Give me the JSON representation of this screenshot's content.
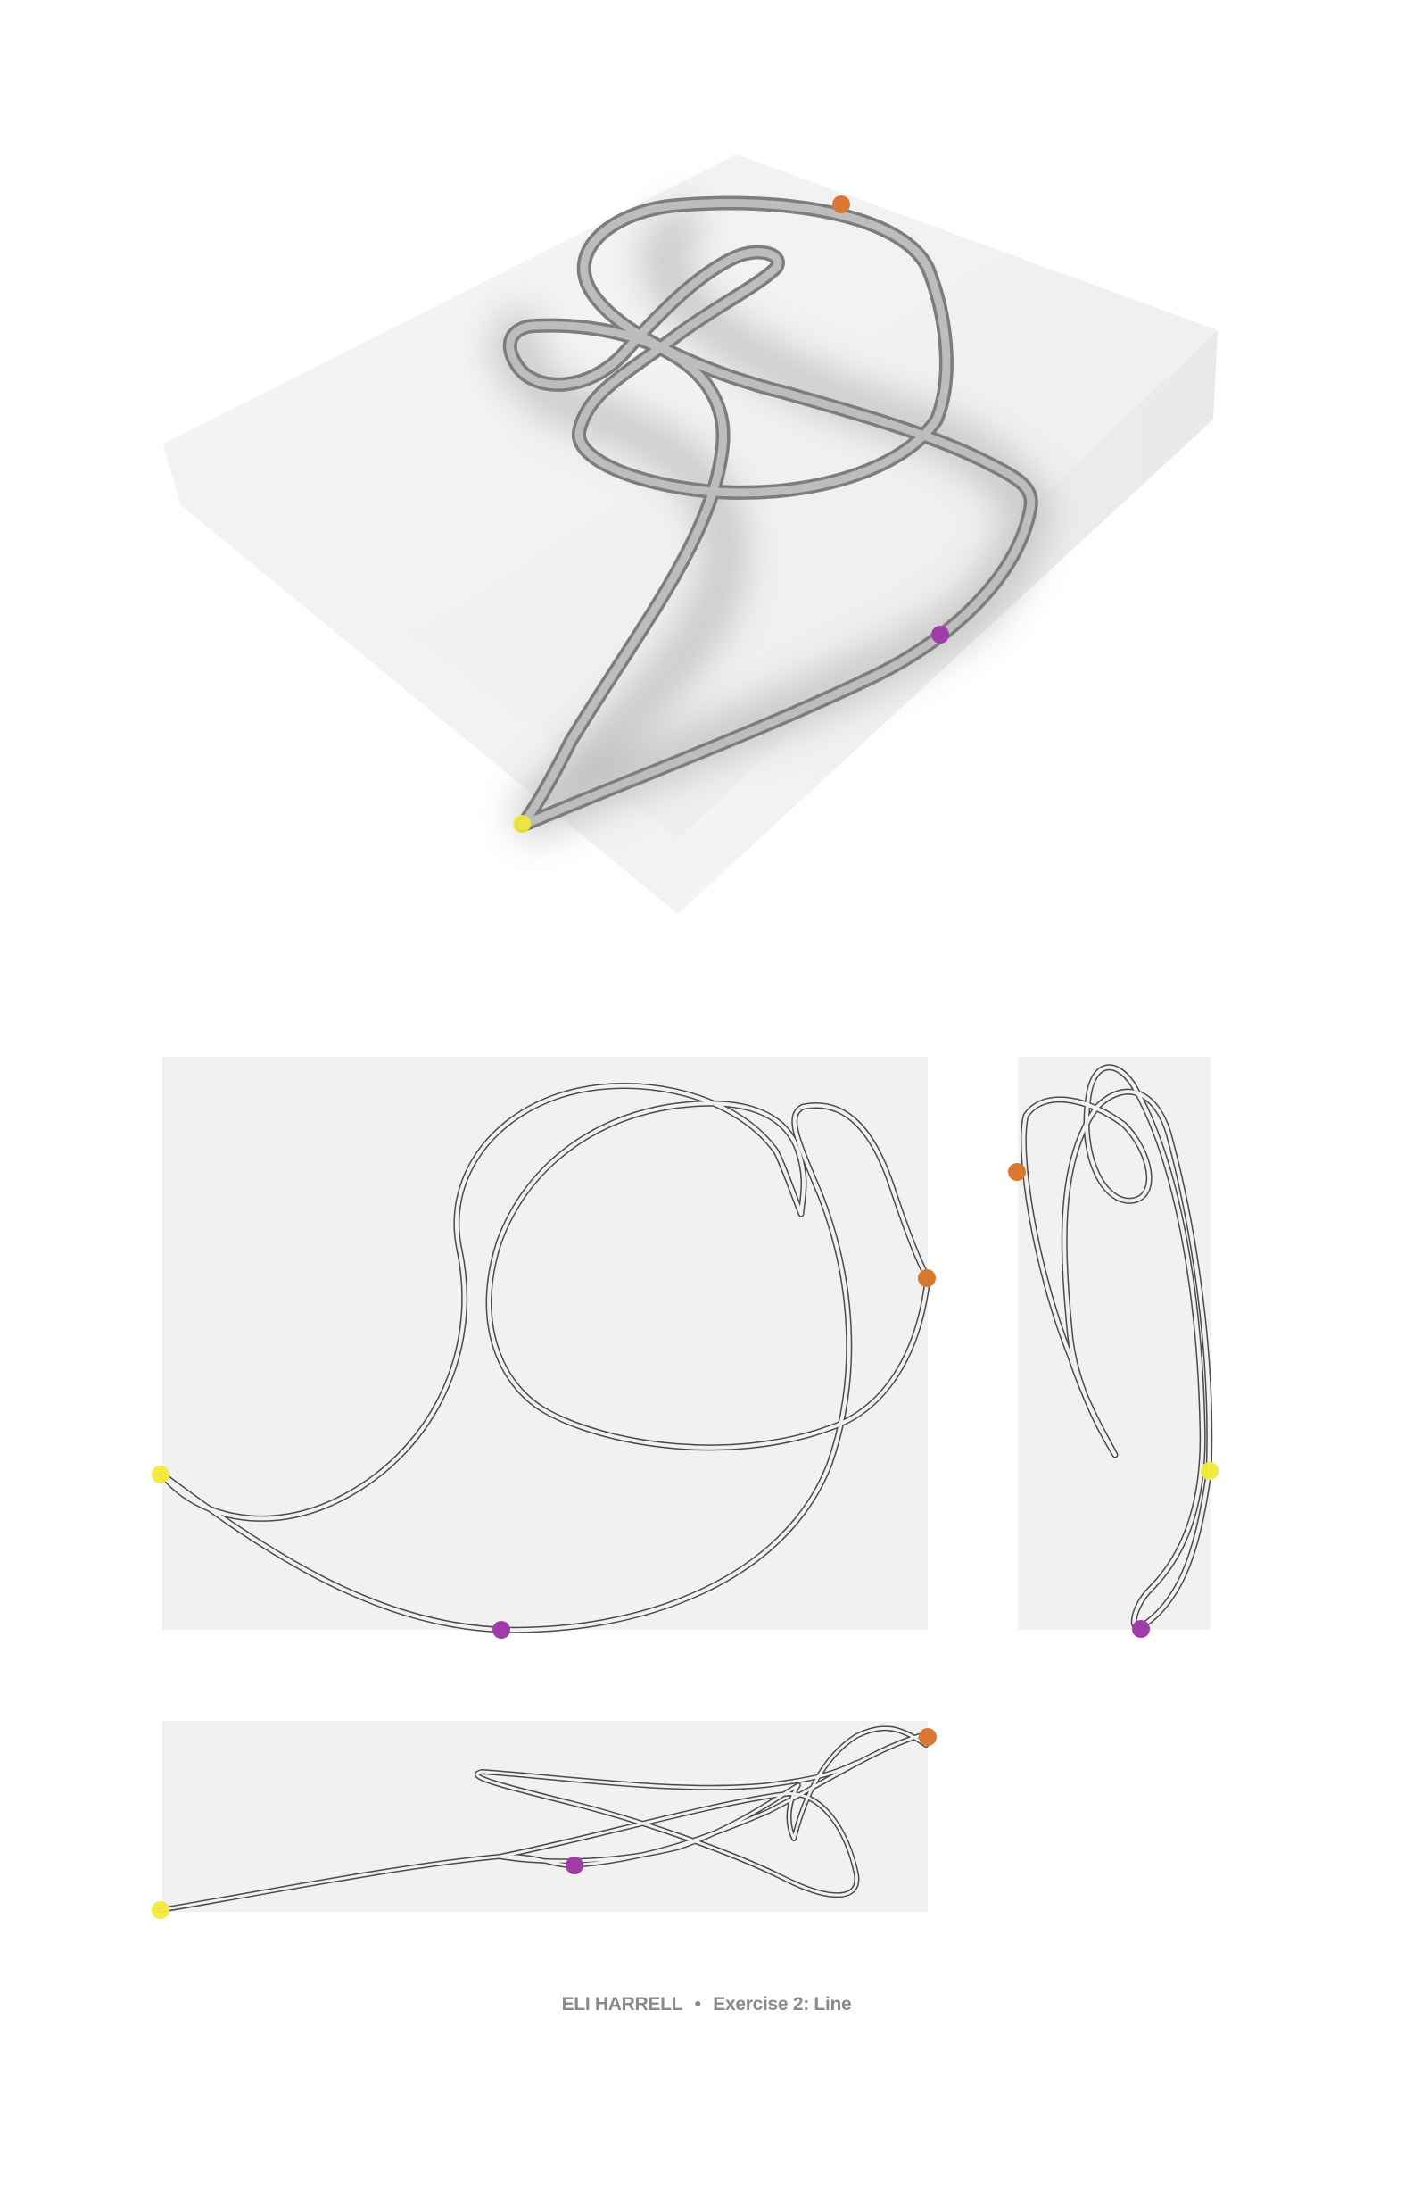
{
  "caption": {
    "author": "ELI HARRELL",
    "separator": "•",
    "title": "Exercise 2: Line"
  },
  "colors": {
    "background": "#ffffff",
    "panel": "#f1f1f1",
    "tube": "#a9a9a9",
    "outline": "#4a4a4a",
    "marker_start": "#f2ea3a",
    "marker_mid": "#a03ca8",
    "marker_end": "#d9782e",
    "caption": "#8a8a8a"
  },
  "markers": [
    {
      "name": "start",
      "color_key": "marker_start"
    },
    {
      "name": "midpoint",
      "color_key": "marker_mid"
    },
    {
      "name": "end",
      "color_key": "marker_end"
    }
  ]
}
